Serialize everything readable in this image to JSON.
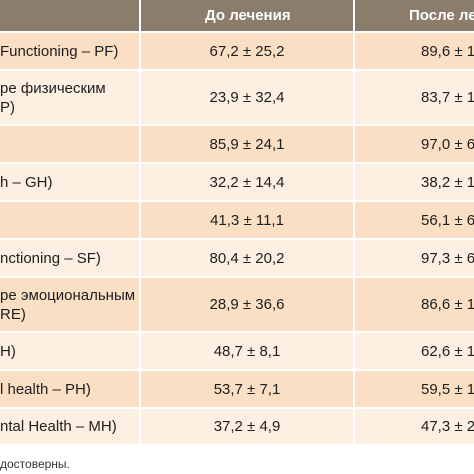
{
  "table": {
    "headers": [
      "",
      "До лечения",
      "После лечени"
    ],
    "rows": [
      {
        "label": "Functioning – PF)",
        "before": "67,2 ± 25,2",
        "after": "89,6 ± 1"
      },
      {
        "label": "ре физическим\nP)",
        "before": "23,9 ± 32,4",
        "after": "83,7 ± 1"
      },
      {
        "label": "",
        "before": "85,9 ± 24,1",
        "after": "97,0 ± 6"
      },
      {
        "label": "h – GH)",
        "before": "32,2 ± 14,4",
        "after": "38,2 ± 1"
      },
      {
        "label": "",
        "before": "41,3 ± 11,1",
        "after": "56,1 ± 6"
      },
      {
        "label": "nctioning – SF)",
        "before": "80,4 ± 20,2",
        "after": "97,3 ± 6"
      },
      {
        "label": "ре эмоциональным\nRE)",
        "before": "28,9 ± 36,6",
        "after": "86,6 ± 1"
      },
      {
        "label": "H)",
        "before": "48,7 ± 8,1",
        "after": "62,6 ± 1"
      },
      {
        "label": "l health – PH)",
        "before": "53,7 ± 7,1",
        "after": "59,5 ± 1"
      },
      {
        "label": "ntal Health – MH)",
        "before": "37,2 ± 4,9",
        "after": "47,3 ± 2"
      }
    ]
  },
  "footnote": "достоверны.",
  "colors": {
    "header_bg": "#8b7d6b",
    "row_odd_bg": "#fbdfc4",
    "row_even_bg": "#fdefe1"
  }
}
